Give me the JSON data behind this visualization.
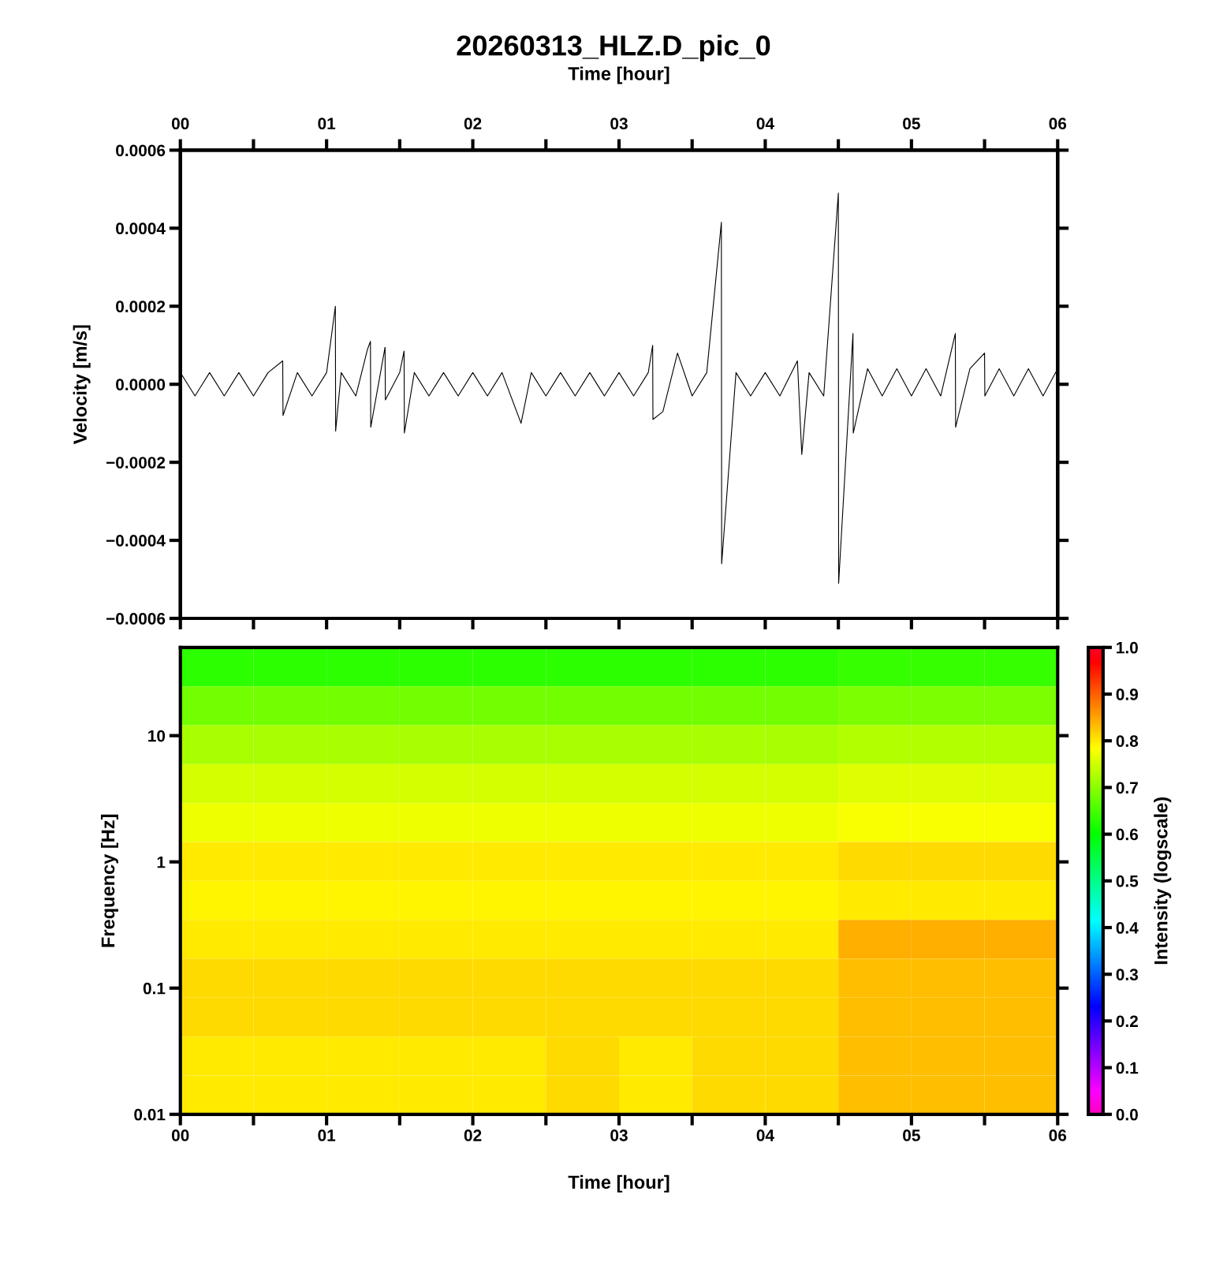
{
  "chart_data": [
    {
      "type": "line",
      "title": "20260313_HLZ.D_pic_0",
      "ylabel": "Velocity [m/s]",
      "x2label": "Time [hour]",
      "x": [
        0.0,
        0.1,
        0.2,
        0.3,
        0.4,
        0.5,
        0.6,
        0.7,
        0.702,
        0.8,
        0.9,
        1.0,
        1.06,
        1.062,
        1.1,
        1.2,
        1.28,
        1.3,
        1.302,
        1.4,
        1.402,
        1.5,
        1.53,
        1.532,
        1.6,
        1.7,
        1.8,
        1.9,
        2.0,
        2.1,
        2.2,
        2.33,
        2.4,
        2.5,
        2.6,
        2.7,
        2.8,
        2.9,
        3.0,
        3.1,
        3.2,
        3.23,
        3.232,
        3.3,
        3.4,
        3.5,
        3.6,
        3.7,
        3.702,
        3.8,
        3.9,
        4.0,
        4.1,
        4.22,
        4.25,
        4.3,
        4.4,
        4.5,
        4.502,
        4.6,
        4.602,
        4.7,
        4.8,
        4.9,
        5.0,
        5.1,
        5.2,
        5.3,
        5.302,
        5.4,
        5.5,
        5.502,
        5.6,
        5.7,
        5.8,
        5.9,
        6.0
      ],
      "series": [
        {
          "color": "#000000",
          "values": [
            3e-05,
            -3e-05,
            3e-05,
            -3e-05,
            3e-05,
            -3e-05,
            3e-05,
            6e-05,
            -8e-05,
            3e-05,
            -3e-05,
            3e-05,
            0.0002,
            -0.00012,
            3e-05,
            -3e-05,
            9e-05,
            0.00011,
            -0.00011,
            9.5e-05,
            -4e-05,
            3e-05,
            8.5e-05,
            -0.000125,
            3e-05,
            -3e-05,
            3e-05,
            -3e-05,
            3e-05,
            -3e-05,
            3e-05,
            -0.0001,
            3e-05,
            -3e-05,
            3e-05,
            -3e-05,
            3e-05,
            -3e-05,
            3e-05,
            -3e-05,
            3e-05,
            0.0001,
            -9e-05,
            -7e-05,
            8e-05,
            -3e-05,
            3e-05,
            0.000415,
            -0.00046,
            3e-05,
            -3e-05,
            3e-05,
            -3e-05,
            6e-05,
            -0.00018,
            3e-05,
            -3e-05,
            0.00049,
            -0.00051,
            0.00013,
            -0.000125,
            4e-05,
            -3e-05,
            4e-05,
            -3e-05,
            4e-05,
            -3e-05,
            0.00013,
            -0.00011,
            4e-05,
            8e-05,
            -3e-05,
            4e-05,
            -3e-05,
            4e-05,
            -3e-05,
            4e-05
          ]
        }
      ],
      "xlim": [
        0,
        6
      ],
      "xticks": [
        0,
        0.5,
        1,
        1.5,
        2,
        2.5,
        3,
        3.5,
        4,
        4.5,
        5,
        5.5,
        6
      ],
      "x2lim": [
        0,
        6
      ],
      "x2ticks": [
        {
          "value": 0,
          "label": "00"
        },
        {
          "value": 0.5,
          "label": null
        },
        {
          "value": 1,
          "label": "01"
        },
        {
          "value": 1.5,
          "label": null
        },
        {
          "value": 2,
          "label": "02"
        },
        {
          "value": 2.5,
          "label": null
        },
        {
          "value": 3,
          "label": "03"
        },
        {
          "value": 3.5,
          "label": null
        },
        {
          "value": 4,
          "label": "04"
        },
        {
          "value": 4.5,
          "label": null
        },
        {
          "value": 5,
          "label": "05"
        },
        {
          "value": 5.5,
          "label": null
        },
        {
          "value": 6,
          "label": "06"
        }
      ],
      "ylim": [
        -0.0006,
        0.0006
      ],
      "yticks": [
        {
          "value": -0.0006,
          "label": "−0.0006"
        },
        {
          "value": -0.0004,
          "label": "−0.0004"
        },
        {
          "value": -0.0002,
          "label": "−0.0002"
        },
        {
          "value": 0,
          "label": "0.0000"
        },
        {
          "value": 0.0002,
          "label": "0.0002"
        },
        {
          "value": 0.0004,
          "label": "0.0004"
        },
        {
          "value": 0.0006,
          "label": "0.0006"
        }
      ],
      "tick_labels": "y",
      "grid": false,
      "legend": false
    },
    {
      "type": "heatmap",
      "xlabel": "Time [hour]",
      "ylabel": "Frequency [Hz]",
      "clabel": "Intensity (logscale)",
      "log": "y",
      "cells": [
        [
          0.63,
          0.63,
          0.63,
          0.63,
          0.63,
          0.63,
          0.63,
          0.63,
          0.63,
          0.64,
          0.64,
          0.64
        ],
        [
          0.68,
          0.68,
          0.68,
          0.68,
          0.68,
          0.68,
          0.68,
          0.68,
          0.68,
          0.69,
          0.69,
          0.69
        ],
        [
          0.72,
          0.72,
          0.72,
          0.72,
          0.72,
          0.72,
          0.72,
          0.72,
          0.72,
          0.73,
          0.73,
          0.73
        ],
        [
          0.75,
          0.75,
          0.75,
          0.75,
          0.75,
          0.75,
          0.75,
          0.75,
          0.75,
          0.76,
          0.76,
          0.76
        ],
        [
          0.77,
          0.77,
          0.77,
          0.77,
          0.77,
          0.77,
          0.77,
          0.77,
          0.77,
          0.78,
          0.78,
          0.78
        ],
        [
          0.8,
          0.8,
          0.8,
          0.8,
          0.8,
          0.8,
          0.8,
          0.8,
          0.8,
          0.81,
          0.81,
          0.81
        ],
        [
          0.79,
          0.79,
          0.79,
          0.79,
          0.79,
          0.79,
          0.79,
          0.79,
          0.79,
          0.8,
          0.8,
          0.8
        ],
        [
          0.8,
          0.8,
          0.8,
          0.8,
          0.8,
          0.8,
          0.8,
          0.8,
          0.8,
          0.84,
          0.84,
          0.84
        ],
        [
          0.81,
          0.81,
          0.81,
          0.81,
          0.81,
          0.81,
          0.81,
          0.81,
          0.81,
          0.83,
          0.83,
          0.83
        ],
        [
          0.81,
          0.81,
          0.81,
          0.81,
          0.81,
          0.81,
          0.81,
          0.81,
          0.81,
          0.83,
          0.83,
          0.83
        ],
        [
          0.8,
          0.8,
          0.8,
          0.8,
          0.8,
          0.81,
          0.8,
          0.81,
          0.81,
          0.83,
          0.83,
          0.83
        ],
        [
          0.8,
          0.8,
          0.8,
          0.8,
          0.8,
          0.81,
          0.8,
          0.81,
          0.81,
          0.83,
          0.83,
          0.83
        ]
      ],
      "xlim": [
        0,
        6
      ],
      "xticks": [
        {
          "value": 0,
          "label": "00"
        },
        {
          "value": 0.5,
          "label": null
        },
        {
          "value": 1,
          "label": "01"
        },
        {
          "value": 1.5,
          "label": null
        },
        {
          "value": 2,
          "label": "02"
        },
        {
          "value": 2.5,
          "label": null
        },
        {
          "value": 3,
          "label": "03"
        },
        {
          "value": 3.5,
          "label": null
        },
        {
          "value": 4,
          "label": "04"
        },
        {
          "value": 4.5,
          "label": null
        },
        {
          "value": 5,
          "label": "05"
        },
        {
          "value": 5.5,
          "label": null
        },
        {
          "value": 6,
          "label": "06"
        }
      ],
      "ylim": [
        0.01,
        50
      ],
      "yticks": [
        0.01,
        0.1,
        1,
        10
      ],
      "clim": [
        0,
        1
      ],
      "cticks": [
        {
          "value": 0,
          "label": "0.0"
        },
        {
          "value": 0.1,
          "label": "0.1"
        },
        {
          "value": 0.2,
          "label": "0.2"
        },
        {
          "value": 0.3,
          "label": "0.3"
        },
        {
          "value": 0.4,
          "label": "0.4"
        },
        {
          "value": 0.5,
          "label": "0.5"
        },
        {
          "value": 0.6,
          "label": "0.6"
        },
        {
          "value": 0.7,
          "label": "0.7"
        },
        {
          "value": 0.8,
          "label": "0.8"
        },
        {
          "value": 0.9,
          "label": "0.9"
        },
        {
          "value": 1,
          "label": "1.0"
        }
      ]
    }
  ]
}
